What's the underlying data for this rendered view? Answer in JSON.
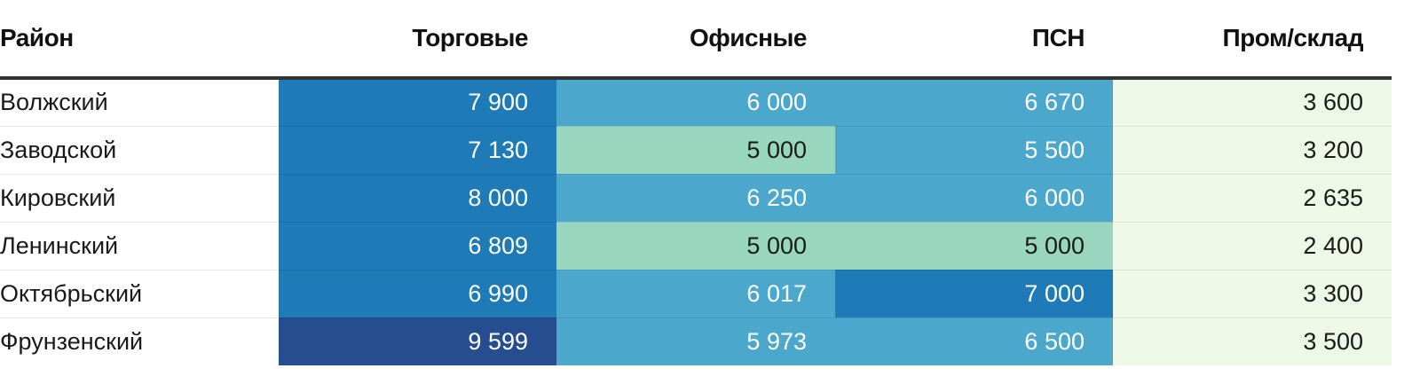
{
  "chart_data": {
    "type": "heatmap",
    "columns": [
      "Район",
      "Торговые",
      "Офисные",
      "ПСН",
      "Пром/склад"
    ],
    "rows": [
      {
        "label": "Волжский",
        "values": [
          "7 900",
          "6 000",
          "6 670",
          "3 600"
        ]
      },
      {
        "label": "Заводской",
        "values": [
          "7 130",
          "5 000",
          "5 500",
          "3 200"
        ]
      },
      {
        "label": "Кировский",
        "values": [
          "8 000",
          "6 250",
          "6 000",
          "2 635"
        ]
      },
      {
        "label": "Ленинский",
        "values": [
          "6 809",
          "5 000",
          "5 000",
          "2 400"
        ]
      },
      {
        "label": "Октябрьский",
        "values": [
          "6 990",
          "6 017",
          "7 000",
          "3 300"
        ]
      },
      {
        "label": "Фрунзенский",
        "values": [
          "9 599",
          "5 973",
          "6 500",
          "3 500"
        ]
      }
    ],
    "numeric_values": [
      [
        7900,
        6000,
        6670,
        3600
      ],
      [
        7130,
        5000,
        5500,
        3200
      ],
      [
        8000,
        6250,
        6000,
        2635
      ],
      [
        6809,
        5000,
        5000,
        2400
      ],
      [
        6990,
        6017,
        7000,
        3300
      ],
      [
        9599,
        5973,
        6500,
        3500
      ]
    ],
    "color_scale": [
      {
        "min": 0,
        "max": 4999,
        "color": "#edf8e6",
        "text": "#1a1a1a"
      },
      {
        "min": 5000,
        "max": 5499,
        "color": "#98d6c0",
        "text": "#1a1a1a"
      },
      {
        "min": 5500,
        "max": 6699,
        "color": "#4ba8cc",
        "text": "#ffffff"
      },
      {
        "min": 6700,
        "max": 8999,
        "color": "#1f7ab8",
        "text": "#ffffff"
      },
      {
        "min": 9000,
        "max": 99999,
        "color": "#254d8f",
        "text": "#ffffff"
      }
    ]
  }
}
